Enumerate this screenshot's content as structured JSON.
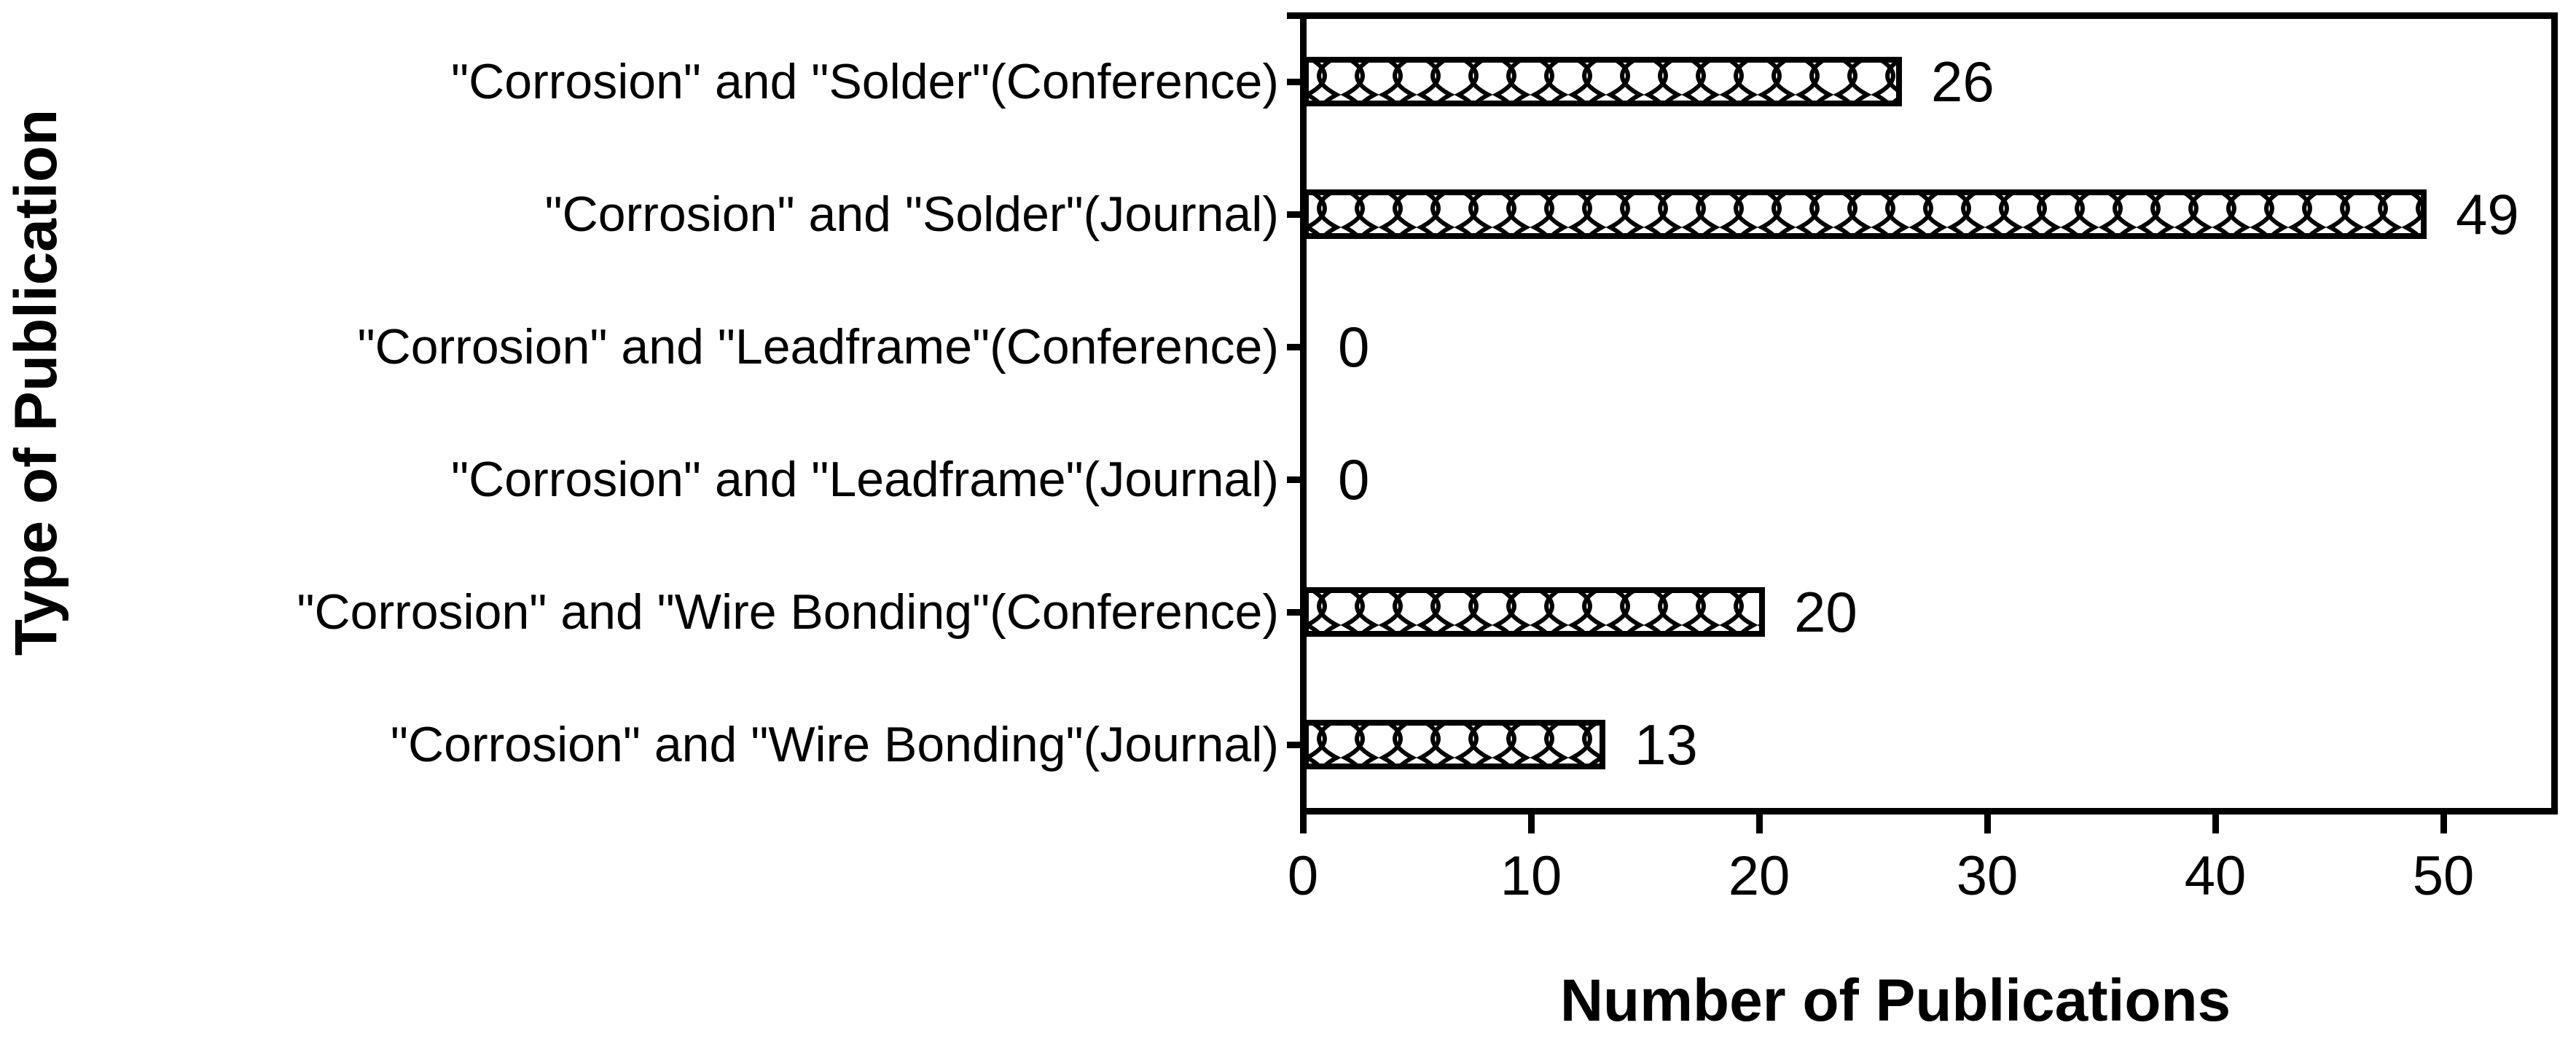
{
  "chart_data": {
    "type": "bar",
    "orientation": "horizontal",
    "title": "",
    "xlabel": "Number of Publications",
    "ylabel": "Type of Publication",
    "categories": [
      "\"Corrosion\" and \"Solder\"(Conference)",
      "\"Corrosion\" and \"Solder\"(Journal)",
      "\"Corrosion\" and \"Leadframe\"(Conference)",
      "\"Corrosion\" and \"Leadframe\"(Journal)",
      "\"Corrosion\" and \"Wire Bonding\"(Conference)",
      "\"Corrosion\" and \"Wire Bonding\"(Journal)"
    ],
    "values": [
      26,
      49,
      0,
      0,
      20,
      13
    ],
    "value_labels": [
      "26",
      "49",
      "0",
      "0",
      "20",
      "13"
    ],
    "xlim": [
      0,
      55
    ],
    "xticks": [
      0,
      10,
      20,
      30,
      40,
      50
    ],
    "grid": false,
    "legend": null,
    "bar_style": {
      "fill": "#ffffff",
      "pattern": "curved-crosshatch",
      "edge_color": "#000000"
    },
    "colors": {
      "foreground": "#000000",
      "background": "#ffffff"
    }
  }
}
